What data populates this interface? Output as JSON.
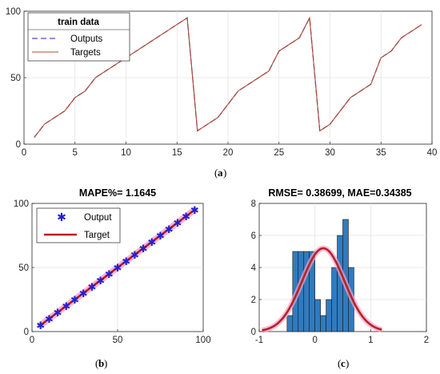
{
  "chart_data": [
    {
      "type": "line",
      "panel_caption": "a",
      "legend_title": "train data",
      "legend_position": "top-left",
      "grid": true,
      "xlim": [
        0,
        40
      ],
      "ylim": [
        0,
        100
      ],
      "xticks": [
        "0",
        "5",
        "10",
        "15",
        "20",
        "25",
        "30",
        "35",
        "40"
      ],
      "yticks": [
        "0",
        "50",
        "100"
      ],
      "colors": {
        "outputs": "#4b4bd6",
        "targets": "#b0482a"
      },
      "x": [
        1,
        2,
        3,
        4,
        5,
        6,
        7,
        8,
        9,
        10,
        11,
        12,
        13,
        14,
        15,
        16,
        17,
        18,
        19,
        20,
        21,
        22,
        23,
        24,
        25,
        26,
        27,
        28,
        29,
        30,
        31,
        32,
        33,
        34,
        35,
        36,
        37,
        38,
        39
      ],
      "series": [
        {
          "name": "Outputs",
          "style": "dashed",
          "values": [
            5,
            15,
            20,
            25,
            35,
            40,
            50,
            55,
            60,
            65,
            70,
            75,
            80,
            85,
            90,
            95,
            10,
            15,
            20,
            30,
            40,
            45,
            50,
            55,
            70,
            75,
            80,
            95,
            10,
            15,
            25,
            35,
            40,
            45,
            65,
            70,
            80,
            85,
            90
          ]
        },
        {
          "name": "Targets",
          "style": "solid",
          "values": [
            5,
            15,
            20,
            25,
            35,
            40,
            50,
            55,
            60,
            65,
            70,
            75,
            80,
            85,
            90,
            95,
            10,
            15,
            20,
            30,
            40,
            45,
            50,
            55,
            70,
            75,
            80,
            95,
            10,
            15,
            25,
            35,
            40,
            45,
            65,
            70,
            80,
            85,
            90
          ]
        }
      ]
    },
    {
      "type": "scatter",
      "panel_caption": "b",
      "title": "MAPE%= 1.1645",
      "legend_position": "top-left",
      "grid": true,
      "xlim": [
        0,
        100
      ],
      "ylim": [
        0,
        100
      ],
      "xticks": [
        "0",
        "50",
        "100"
      ],
      "yticks": [
        "0",
        "50",
        "100"
      ],
      "colors": {
        "output": "#2222cc",
        "target": "#c21a10",
        "halo": "#f4a3d7"
      },
      "series": [
        {
          "name": "Output",
          "marker": "*",
          "x": [
            5,
            10,
            15,
            20,
            25,
            30,
            35,
            40,
            45,
            50,
            55,
            60,
            65,
            70,
            75,
            80,
            85,
            90,
            95
          ],
          "y": [
            5,
            10,
            15,
            20,
            25,
            30,
            35,
            40,
            45,
            50,
            55,
            60,
            65,
            70,
            75,
            80,
            85,
            90,
            95
          ]
        },
        {
          "name": "Target",
          "line": "solid",
          "x": [
            5,
            95
          ],
          "y": [
            5,
            95
          ]
        }
      ]
    },
    {
      "type": "histogram",
      "panel_caption": "c",
      "title": "RMSE= 0.38699, MAE=0.34385",
      "grid": true,
      "xlim": [
        -1,
        2
      ],
      "ylim": [
        0,
        8
      ],
      "xticks": [
        "-1",
        "0",
        "1",
        "2"
      ],
      "yticks": [
        "0",
        "2",
        "4",
        "6",
        "8"
      ],
      "colors": {
        "bars": "#2f7bbf",
        "fit": "#b3261e",
        "halo": "#f4a3d7"
      },
      "bin_edges": [
        -0.5,
        -0.4,
        -0.3,
        -0.2,
        -0.1,
        0.0,
        0.1,
        0.2,
        0.3,
        0.4,
        0.5,
        0.6,
        0.7
      ],
      "counts": [
        1,
        5,
        5,
        5,
        5,
        2,
        1,
        2,
        4,
        6,
        7,
        4
      ],
      "fit": {
        "type": "normal",
        "mean": 0.15,
        "std": 0.38,
        "peak": 5.2
      }
    }
  ]
}
